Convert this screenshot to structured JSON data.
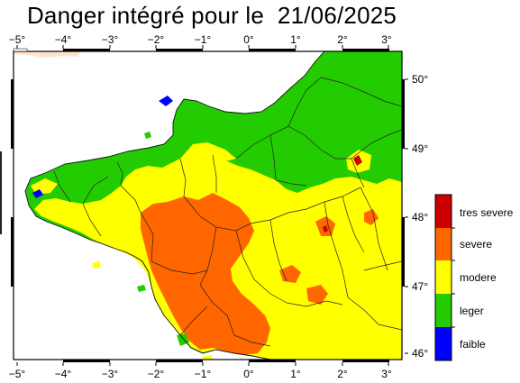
{
  "title": {
    "prefix": "Danger intégré pour le",
    "date": "21/06/2025"
  },
  "axes": {
    "lon_ticks": [
      "−5°",
      "−4°",
      "−3°",
      "−2°",
      "−1°",
      "0°",
      "1°",
      "2°",
      "3°"
    ],
    "lat_ticks": [
      "50°",
      "49°",
      "48°",
      "47°",
      "46°"
    ]
  },
  "legend": {
    "classes": [
      {
        "label": "tres severe",
        "color": "#cc0000"
      },
      {
        "label": "severe",
        "color": "#ff6600"
      },
      {
        "label": "modere",
        "color": "#ffff00"
      },
      {
        "label": "leger",
        "color": "#22cc00"
      },
      {
        "label": "faible",
        "color": "#0000ff"
      }
    ]
  },
  "colors": {
    "sea": "#ffffff",
    "land_outside": "#ffe4cc",
    "frame": "#000000"
  }
}
